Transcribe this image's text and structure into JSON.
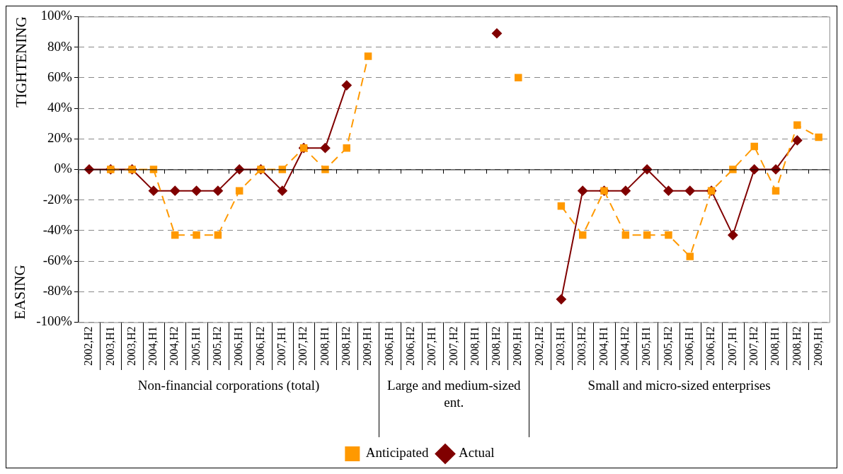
{
  "chart_data": {
    "type": "line",
    "ylabel": "TIGHTENING",
    "categories": [
      "2002,H2",
      "2003,H1",
      "2003,H2",
      "2004,H1",
      "2004,H2",
      "2005,H1",
      "2005,H2",
      "2006,H1",
      "2006,H2",
      "2007,H1",
      "2007,H2",
      "2008,H1",
      "2008,H2",
      "2009,H1",
      "2006,H1",
      "2006,H2",
      "2007,H1",
      "2007,H2",
      "2008,H1",
      "2008,H2",
      "2009,H1",
      "2002,H2",
      "2003,H1",
      "2003,H2",
      "2004,H1",
      "2004,H2",
      "2005,H1",
      "2005,H2",
      "2006,H1",
      "2006,H2",
      "2007,H1",
      "2007,H2",
      "2008,H1",
      "2008,H2",
      "2009,H1"
    ],
    "series": [
      {
        "name": "Actual",
        "color": "#800000",
        "marker": "diamond",
        "line_style": "solid",
        "values": [
          0,
          0,
          0,
          -14,
          -14,
          -14,
          -14,
          0,
          0,
          -14,
          14,
          14,
          55,
          null,
          null,
          null,
          null,
          null,
          null,
          89,
          null,
          null,
          -85,
          -14,
          -14,
          -14,
          0,
          -14,
          -14,
          -14,
          -43,
          0,
          0,
          19,
          null
        ]
      },
      {
        "name": "Anticipated",
        "color": "#ff9900",
        "marker": "square",
        "line_style": "dashed",
        "values": [
          null,
          0,
          0,
          0,
          -43,
          -43,
          -43,
          -14,
          0,
          0,
          14,
          0,
          14,
          74,
          null,
          null,
          null,
          null,
          null,
          null,
          60,
          null,
          -24,
          -43,
          -14,
          -43,
          -43,
          -43,
          -57,
          -14,
          0,
          15,
          -14,
          29,
          21
        ]
      }
    ],
    "annotations": [
      "Non-financial corporations (total)",
      "Large and medium-sized ent.",
      "Small and micro-sized enterprises",
      "EASING"
    ],
    "ylim": [
      -100,
      100
    ],
    "yticks": [
      {
        "value": -100,
        "label": "-100%"
      },
      {
        "value": -80,
        "label": "-80%"
      },
      {
        "value": -60,
        "label": "-60%"
      },
      {
        "value": -40,
        "label": "-40%"
      },
      {
        "value": -20,
        "label": "-20%"
      },
      {
        "value": 0,
        "label": "0%"
      },
      {
        "value": 20,
        "label": "20%"
      },
      {
        "value": 40,
        "label": "40%"
      },
      {
        "value": 60,
        "label": "60%"
      },
      {
        "value": 80,
        "label": "80%"
      },
      {
        "value": 100,
        "label": "100%"
      }
    ],
    "grid": "y",
    "legend": "bottom"
  }
}
